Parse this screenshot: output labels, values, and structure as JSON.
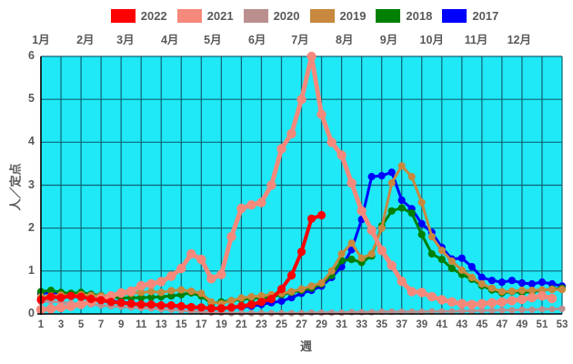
{
  "chart_data": {
    "type": "line",
    "title": "",
    "xlabel": "週",
    "ylabel": "人／定点",
    "xlim": [
      1,
      53
    ],
    "ylim": [
      0,
      6
    ],
    "grid": true,
    "legend_position": "top",
    "plot_bg_color": "#1fe9f7",
    "grid_color": "#0e6373",
    "axis_color": "#000000",
    "text_color": "#595959",
    "months": [
      "1月",
      "2月",
      "3月",
      "4月",
      "5月",
      "6月",
      "7月",
      "8月",
      "9月",
      "10月",
      "11月",
      "12月"
    ],
    "xticks": [
      1,
      3,
      5,
      7,
      9,
      11,
      13,
      15,
      17,
      19,
      21,
      23,
      25,
      27,
      29,
      31,
      33,
      35,
      37,
      39,
      41,
      43,
      45,
      47,
      49,
      51,
      53
    ],
    "yticks": [
      0,
      1,
      2,
      3,
      4,
      5,
      6
    ],
    "x_is_week_number": true,
    "series": [
      {
        "name": "2022",
        "color": "#ff0000",
        "values": [
          0.33,
          0.4,
          0.38,
          0.42,
          0.4,
          0.35,
          0.32,
          0.28,
          0.26,
          0.24,
          0.22,
          0.22,
          0.2,
          0.2,
          0.18,
          0.16,
          0.15,
          0.13,
          0.13,
          0.15,
          0.18,
          0.22,
          0.28,
          0.35,
          0.58,
          0.9,
          1.45,
          2.22,
          2.3
        ]
      },
      {
        "name": "2021",
        "color": "#f5897b",
        "values": [
          0.1,
          0.12,
          0.15,
          0.18,
          0.22,
          0.28,
          0.35,
          0.42,
          0.49,
          0.53,
          0.66,
          0.7,
          0.75,
          0.88,
          1.06,
          1.4,
          1.27,
          0.82,
          0.92,
          1.8,
          2.46,
          2.54,
          2.6,
          3.0,
          3.85,
          4.2,
          5.0,
          6.0,
          4.65,
          4.0,
          3.7,
          3.05,
          2.4,
          1.95,
          1.48,
          1.13,
          0.76,
          0.52,
          0.5,
          0.4,
          0.33,
          0.28,
          0.24,
          0.22,
          0.24,
          0.26,
          0.28,
          0.31,
          0.34,
          0.38,
          0.42,
          0.36
        ]
      },
      {
        "name": "2020",
        "color": "#bc8f8f",
        "values": [
          0.28,
          0.3,
          0.27,
          0.25,
          0.24,
          0.22,
          0.2,
          0.18,
          0.17,
          0.15,
          0.14,
          0.13,
          0.11,
          0.1,
          0.08,
          0.06,
          0.05,
          0.03,
          0.03,
          0.02,
          0.02,
          0.02,
          0.02,
          0.02,
          0.02,
          0.02,
          0.02,
          0.03,
          0.03,
          0.03,
          0.03,
          0.04,
          0.04,
          0.04,
          0.05,
          0.05,
          0.05,
          0.05,
          0.05,
          0.06,
          0.06,
          0.06,
          0.07,
          0.07,
          0.08,
          0.08,
          0.09,
          0.09,
          0.1,
          0.1,
          0.11,
          0.11,
          0.12
        ]
      },
      {
        "name": "2019",
        "color": "#c8893e",
        "values": [
          0.4,
          0.42,
          0.44,
          0.42,
          0.45,
          0.43,
          0.42,
          0.44,
          0.46,
          0.48,
          0.5,
          0.52,
          0.5,
          0.54,
          0.56,
          0.53,
          0.48,
          0.28,
          0.24,
          0.31,
          0.37,
          0.4,
          0.42,
          0.45,
          0.48,
          0.52,
          0.58,
          0.65,
          0.72,
          1.0,
          1.4,
          1.65,
          1.3,
          1.4,
          2.0,
          3.05,
          3.45,
          3.2,
          2.6,
          1.8,
          1.48,
          1.23,
          1.02,
          0.85,
          0.7,
          0.6,
          0.52,
          0.53,
          0.55,
          0.55,
          0.56,
          0.57,
          0.57
        ]
      },
      {
        "name": "2018",
        "color": "#008000",
        "values": [
          0.52,
          0.55,
          0.5,
          0.48,
          0.5,
          0.46,
          0.43,
          0.4,
          0.37,
          0.38,
          0.38,
          0.39,
          0.4,
          0.42,
          0.45,
          0.49,
          0.42,
          0.25,
          0.28,
          0.31,
          0.34,
          0.36,
          0.38,
          0.4,
          0.45,
          0.5,
          0.55,
          0.6,
          0.7,
          0.9,
          1.24,
          1.27,
          1.2,
          1.35,
          2.05,
          2.4,
          2.47,
          2.35,
          1.85,
          1.4,
          1.27,
          1.06,
          0.92,
          0.81,
          0.66,
          0.56,
          0.49,
          0.52,
          0.5,
          0.52,
          0.55,
          0.58,
          0.6
        ]
      },
      {
        "name": "2017",
        "color": "#0000ff",
        "values": [
          0.48,
          0.5,
          0.46,
          0.42,
          0.4,
          0.36,
          0.33,
          0.3,
          0.28,
          0.25,
          0.22,
          0.2,
          0.2,
          0.18,
          0.17,
          0.15,
          0.14,
          0.12,
          0.12,
          0.14,
          0.16,
          0.18,
          0.22,
          0.26,
          0.3,
          0.38,
          0.48,
          0.55,
          0.65,
          0.85,
          1.1,
          1.5,
          2.2,
          3.2,
          3.22,
          3.3,
          2.65,
          2.45,
          2.1,
          1.9,
          1.55,
          1.28,
          1.3,
          1.1,
          0.85,
          0.78,
          0.74,
          0.78,
          0.72,
          0.7,
          0.74,
          0.7,
          0.65
        ]
      }
    ]
  }
}
